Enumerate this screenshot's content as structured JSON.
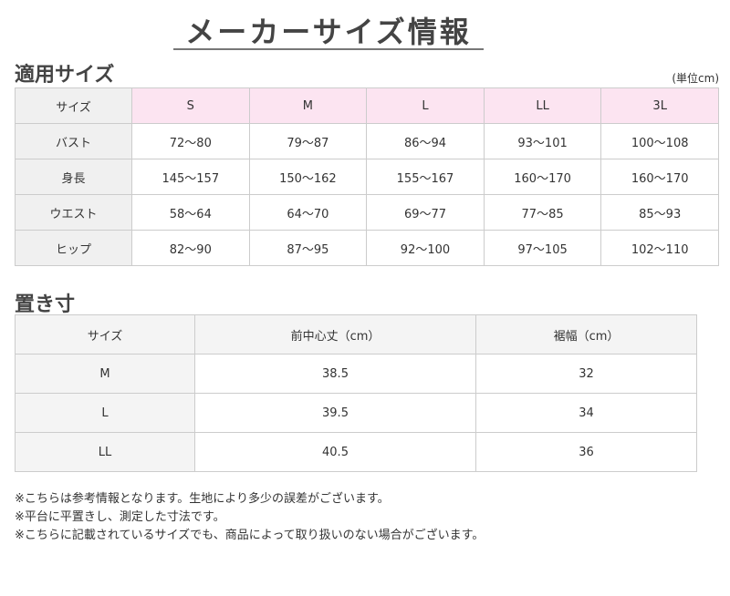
{
  "title": "メーカーサイズ情報",
  "section1": {
    "heading": "適用サイズ",
    "unit": "(単位cm)",
    "header": [
      "サイズ",
      "S",
      "M",
      "L",
      "LL",
      "3L"
    ],
    "rows": [
      [
        "バスト",
        "72〜80",
        "79〜87",
        "86〜94",
        "93〜101",
        "100〜108"
      ],
      [
        "身長",
        "145〜157",
        "150〜162",
        "155〜167",
        "160〜170",
        "160〜170"
      ],
      [
        "ウエスト",
        "58〜64",
        "64〜70",
        "69〜77",
        "77〜85",
        "85〜93"
      ],
      [
        "ヒップ",
        "82〜90",
        "87〜95",
        "92〜100",
        "97〜105",
        "102〜110"
      ]
    ]
  },
  "section2": {
    "heading": "置き寸",
    "header": [
      "サイズ",
      "前中心丈（cm）",
      "裾幅（cm）"
    ],
    "rows": [
      [
        "M",
        "38.5",
        "32"
      ],
      [
        "L",
        "39.5",
        "34"
      ],
      [
        "LL",
        "40.5",
        "36"
      ]
    ]
  },
  "notes": [
    "※こちらは参考情報となります。生地により多少の誤差がございます。",
    "※平台に平置きし、測定した寸法です。",
    "※こちらに記載されているサイズでも、商品によって取り扱いのない場合がございます。"
  ]
}
